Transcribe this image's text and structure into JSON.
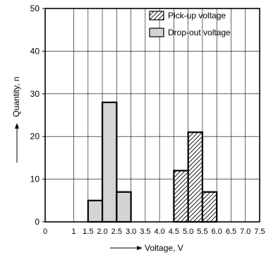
{
  "chart_data": {
    "type": "bar",
    "xlabel": "Voltage, V",
    "ylabel": "Quantity, n",
    "xlim": [
      0,
      7.5
    ],
    "ylim": [
      0,
      50
    ],
    "grid": true,
    "legend_position": "top-right",
    "x_ticks": [
      "0",
      "1",
      "1.5",
      "2.0",
      "2.5",
      "3.0",
      "3.5",
      "4.0",
      "4.5",
      "5.0",
      "5.5",
      "6.0",
      "6.5",
      "7.0",
      "7.5"
    ],
    "y_ticks": [
      "0",
      "10",
      "20",
      "30",
      "40",
      "50"
    ],
    "series": [
      {
        "name": "Pick-up voltage",
        "pattern": "hatched",
        "bins": [
          {
            "from": 4.5,
            "to": 5.0,
            "value": 12
          },
          {
            "from": 5.0,
            "to": 5.5,
            "value": 21
          },
          {
            "from": 5.5,
            "to": 6.0,
            "value": 7
          }
        ]
      },
      {
        "name": "Drop-out voltage",
        "pattern": "solid",
        "color": "#d4d4d4",
        "bins": [
          {
            "from": 1.5,
            "to": 2.0,
            "value": 5
          },
          {
            "from": 2.0,
            "to": 2.5,
            "value": 28
          },
          {
            "from": 2.5,
            "to": 3.0,
            "value": 7
          }
        ]
      }
    ]
  }
}
